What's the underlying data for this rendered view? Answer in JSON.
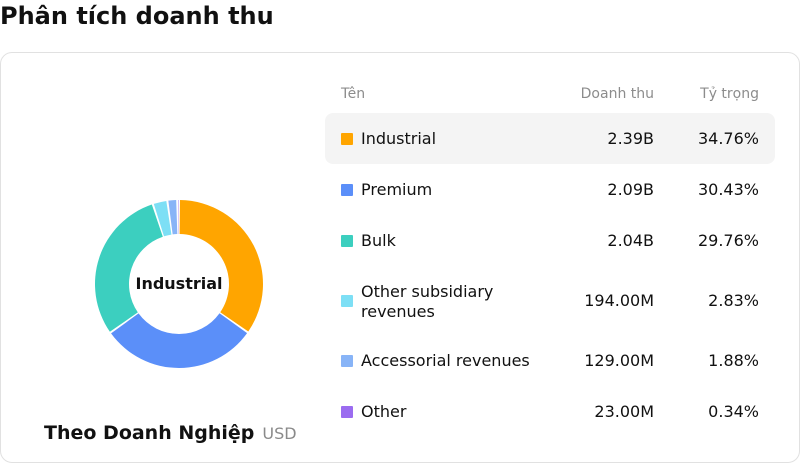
{
  "page_title": "Phân tích doanh thu",
  "donut": {
    "center_label": "Industrial",
    "breakdown_title": "Theo Doanh Nghiệp",
    "unit": "USD"
  },
  "table": {
    "headers": {
      "name": "Tên",
      "revenue": "Doanh thu",
      "share": "Tỷ trọng"
    },
    "rows": [
      {
        "name": "Industrial",
        "revenue": "2.39B",
        "share": "34.76%",
        "percent": 34.76,
        "color": "#ffa500"
      },
      {
        "name": "Premium",
        "revenue": "2.09B",
        "share": "30.43%",
        "percent": 30.43,
        "color": "#5b8ff9"
      },
      {
        "name": "Bulk",
        "revenue": "2.04B",
        "share": "29.76%",
        "percent": 29.76,
        "color": "#3ccfbf"
      },
      {
        "name": "Other subsidiary revenues",
        "revenue": "194.00M",
        "share": "2.83%",
        "percent": 2.83,
        "color": "#7ddff5"
      },
      {
        "name": "Accessorial revenues",
        "revenue": "129.00M",
        "share": "1.88%",
        "percent": 1.88,
        "color": "#88b4f7"
      },
      {
        "name": "Other",
        "revenue": "23.00M",
        "share": "0.34%",
        "percent": 0.34,
        "color": "#9b6cf0"
      }
    ]
  }
}
